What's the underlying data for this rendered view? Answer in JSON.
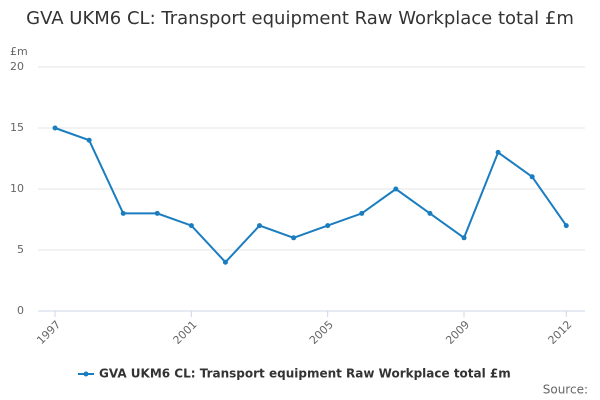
{
  "chart_data": {
    "type": "line",
    "title": "GVA UKM6 CL: Transport equipment Raw Workplace total £m",
    "y_label": "£m",
    "source": "Source:",
    "x": [
      1997,
      1998,
      1999,
      2000,
      2001,
      2002,
      2003,
      2004,
      2005,
      2006,
      2007,
      2008,
      2009,
      2010,
      2011,
      2012
    ],
    "series": [
      {
        "name": "GVA UKM6 CL: Transport equipment Raw Workplace total £m",
        "color": "#1a7dc0",
        "values": [
          15,
          14,
          8,
          8,
          7,
          4,
          7,
          6,
          7,
          8,
          10,
          8,
          6,
          13,
          11,
          7
        ]
      }
    ],
    "xlim": [
      1996.5,
      2012.55
    ],
    "xticks": [
      1997,
      2001,
      2005,
      2009,
      2012
    ],
    "ylim": [
      0,
      20
    ],
    "yticks": [
      0,
      5,
      10,
      15,
      20
    ],
    "grid": true
  }
}
